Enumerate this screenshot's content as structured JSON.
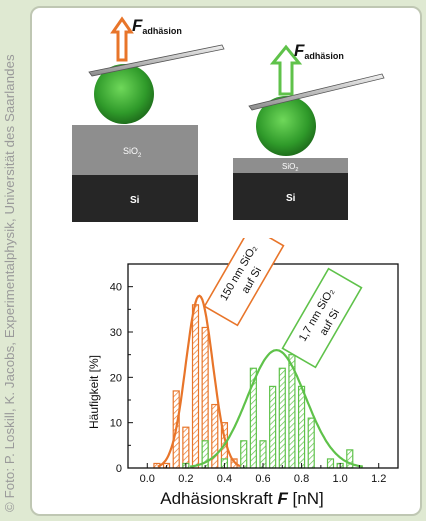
{
  "credit": "© Foto: P. Loskill, K. Jacobs, Experimentalphysik, Universität des Saarlandes",
  "illustration": {
    "left": {
      "force_symbol": "F",
      "force_subscript": "adhäsion",
      "oxide_label": "SiO",
      "oxide_sub": "2",
      "substrate_label": "Si",
      "arrow_color": "#e8752a"
    },
    "right": {
      "force_symbol": "F",
      "force_subscript": "adhäsion",
      "oxide_label": "SiO",
      "oxide_sub": "2",
      "substrate_label": "Si",
      "arrow_color": "#5fc24a"
    }
  },
  "annotations": {
    "orange": {
      "lines": [
        "150 nm SiO₂",
        "auf Si"
      ],
      "color": "#e8752a"
    },
    "green": {
      "lines": [
        "1,7 nm SiO₂",
        "auf Si"
      ],
      "color": "#5fc24a"
    }
  },
  "chart_data": {
    "type": "bar",
    "xlabel_main": "Adhäsionskraft ",
    "xlabel_symbol": "F",
    "xlabel_unit": " [nN]",
    "ylabel": "Häufigkeit [%]",
    "xlim": [
      -0.1,
      1.3
    ],
    "ylim": [
      0,
      45
    ],
    "xticks": [
      "0.0",
      "0.2",
      "0.4",
      "0.6",
      "0.8",
      "1.0",
      "1.2"
    ],
    "xtick_values": [
      0.0,
      0.2,
      0.4,
      0.6,
      0.8,
      1.0,
      1.2
    ],
    "yticks": [
      "0",
      "10",
      "20",
      "30",
      "40"
    ],
    "ytick_values": [
      0,
      10,
      20,
      30,
      40
    ],
    "bin_width": 0.05,
    "series": [
      {
        "color": "#e8752a",
        "x": [
          0.05,
          0.1,
          0.15,
          0.2,
          0.25,
          0.3,
          0.35,
          0.4,
          0.45
        ],
        "values": [
          1,
          1,
          17,
          9,
          36,
          31,
          14,
          10,
          2
        ],
        "fit": {
          "mean": 0.27,
          "sigma": 0.07,
          "amplitude": 38
        }
      },
      {
        "color": "#5fc24a",
        "x": [
          0.2,
          0.3,
          0.4,
          0.5,
          0.55,
          0.6,
          0.65,
          0.7,
          0.75,
          0.8,
          0.85,
          0.95,
          1.0,
          1.05
        ],
        "values": [
          1,
          6,
          2,
          6,
          22,
          6,
          18,
          22,
          25,
          18,
          11,
          2,
          1,
          4
        ],
        "fit": {
          "mean": 0.67,
          "sigma": 0.15,
          "amplitude": 26
        }
      }
    ]
  }
}
